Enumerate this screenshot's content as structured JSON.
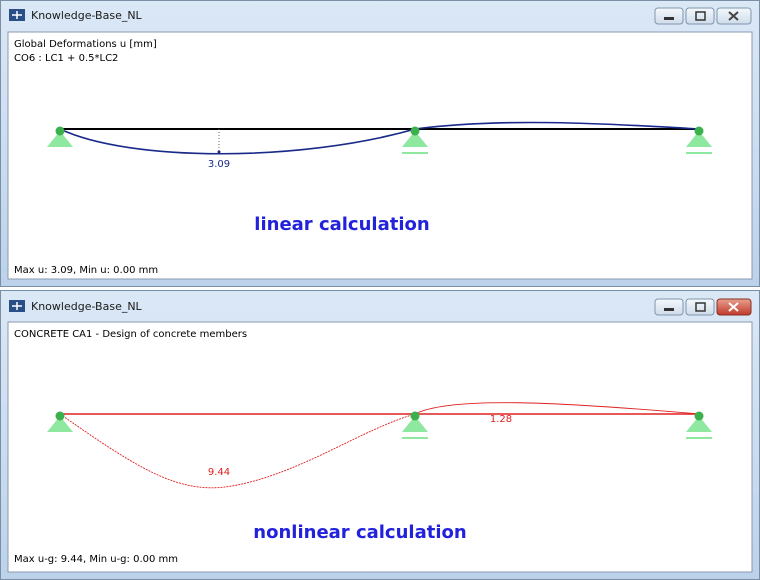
{
  "windows": [
    {
      "title": "Knowledge-Base_NL",
      "header": [
        "Global Deformations u [mm]",
        "CO6 : LC1 + 0.5*LC2"
      ],
      "labels": [
        "3.09"
      ],
      "caption": "linear calculation",
      "footer": "Max u: 3.09, Min u: 0.00 mm"
    },
    {
      "title": "Knowledge-Base_NL",
      "header": [
        "CONCRETE CA1 - Design of concrete members"
      ],
      "labels": [
        "9.44",
        "1.28"
      ],
      "caption": "nonlinear calculation",
      "footer": "Max u-g: 9.44, Min u-g: 0.00 mm"
    }
  ]
}
